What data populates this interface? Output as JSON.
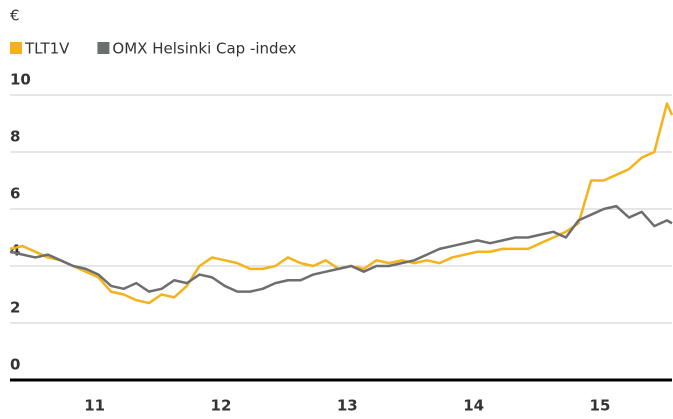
{
  "chart_data": {
    "type": "line",
    "ylabel": "€",
    "x": [
      10.33,
      10.43,
      10.53,
      10.63,
      10.73,
      10.83,
      10.93,
      11.03,
      11.13,
      11.23,
      11.33,
      11.43,
      11.53,
      11.63,
      11.73,
      11.83,
      11.93,
      12.03,
      12.13,
      12.23,
      12.33,
      12.43,
      12.53,
      12.63,
      12.73,
      12.83,
      12.93,
      13.03,
      13.13,
      13.23,
      13.33,
      13.43,
      13.53,
      13.63,
      13.73,
      13.83,
      13.93,
      14.03,
      14.13,
      14.23,
      14.33,
      14.43,
      14.53,
      14.63,
      14.73,
      14.83,
      14.93,
      15.03,
      15.13,
      15.23,
      15.33,
      15.43,
      15.53,
      15.57
    ],
    "series": [
      {
        "name": "TLT1V",
        "color": "#f5b21b",
        "values": [
          4.6,
          4.7,
          4.5,
          4.3,
          4.2,
          4.0,
          3.8,
          3.6,
          3.1,
          3.0,
          2.8,
          2.7,
          3.0,
          2.9,
          3.3,
          4.0,
          4.3,
          4.2,
          4.1,
          3.9,
          3.9,
          4.0,
          4.3,
          4.1,
          4.0,
          4.2,
          3.9,
          4.0,
          3.9,
          4.2,
          4.1,
          4.2,
          4.1,
          4.2,
          4.1,
          4.3,
          4.4,
          4.5,
          4.5,
          4.6,
          4.6,
          4.6,
          4.8,
          5.0,
          5.2,
          5.5,
          7.0,
          7.0,
          7.2,
          7.4,
          7.8,
          8.0,
          9.7,
          9.3
        ]
      },
      {
        "name": "OMX Helsinki Cap -index",
        "color": "#6d6e70",
        "values": [
          4.5,
          4.4,
          4.3,
          4.4,
          4.2,
          4.0,
          3.9,
          3.7,
          3.3,
          3.2,
          3.4,
          3.1,
          3.2,
          3.5,
          3.4,
          3.7,
          3.6,
          3.3,
          3.1,
          3.1,
          3.2,
          3.4,
          3.5,
          3.5,
          3.7,
          3.8,
          3.9,
          4.0,
          3.8,
          4.0,
          4.0,
          4.1,
          4.2,
          4.4,
          4.6,
          4.7,
          4.8,
          4.9,
          4.8,
          4.9,
          5.0,
          5.0,
          5.1,
          5.2,
          5.0,
          5.6,
          5.8,
          6.0,
          6.1,
          5.7,
          5.9,
          5.4,
          5.6,
          5.5
        ]
      }
    ],
    "xlim": [
      10.33,
      15.57
    ],
    "xticks": [
      11,
      12,
      13,
      14,
      15
    ],
    "ylim": [
      0,
      10
    ],
    "yticks": [
      0,
      2,
      4,
      6,
      8,
      10
    ],
    "grid": true
  }
}
